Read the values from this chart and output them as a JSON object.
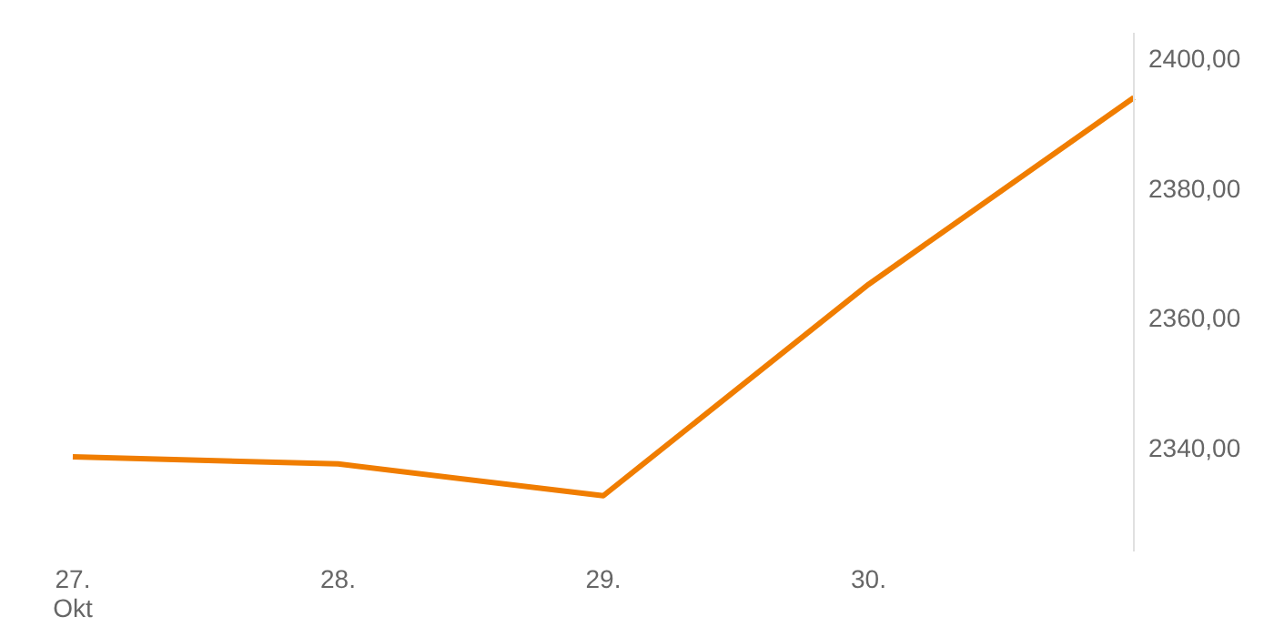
{
  "chart_data": {
    "type": "line",
    "categories": [
      "27.\nOkt",
      "28.",
      "29.",
      "30.",
      null
    ],
    "series": [
      {
        "color": "#f07d00",
        "values": [
          2338.6,
          2337.5,
          2332.6,
          2365.2,
          2394
        ]
      }
    ],
    "ylim": [
      2324,
      2404
    ],
    "yticks": [
      {
        "value": 2340,
        "label": "2340,00"
      },
      {
        "value": 2360,
        "label": "2360,00"
      },
      {
        "value": 2380,
        "label": "2380,00"
      },
      {
        "value": 2400,
        "label": "2400,00"
      }
    ],
    "grid": false,
    "legend": false,
    "marker": "none"
  }
}
